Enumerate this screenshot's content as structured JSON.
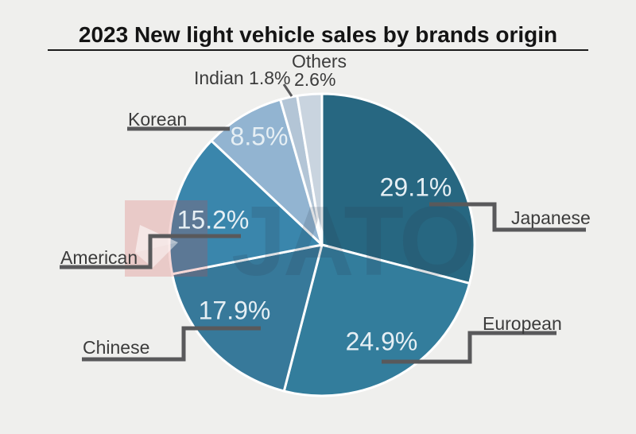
{
  "title": "2023 New light vehicle sales by brands origin",
  "watermark": {
    "brand": "JATO"
  },
  "chart_data": {
    "type": "pie",
    "title": "2023 New light vehicle sales by brands origin",
    "units": "percent share",
    "start_angle_deg": 0,
    "clockwise": true,
    "legend_position": "callout-labels",
    "series": [
      {
        "label": "Japanese",
        "value": 29.1,
        "display": "29.1%",
        "color": "#276781"
      },
      {
        "label": "European",
        "value": 24.9,
        "display": "24.9%",
        "color": "#337D9C"
      },
      {
        "label": "Chinese",
        "value": 17.9,
        "display": "17.9%",
        "color": "#37799A"
      },
      {
        "label": "American",
        "value": 15.2,
        "display": "15.2%",
        "color": "#3A86AC"
      },
      {
        "label": "Korean",
        "value": 8.5,
        "display": "8.5%",
        "color": "#92B4D1"
      },
      {
        "label": "Indian",
        "value": 1.8,
        "display": "1.8%",
        "color": "#B3C5D6"
      },
      {
        "label": "Others",
        "value": 2.6,
        "display": "2.6%",
        "color": "#C9D4DF"
      }
    ]
  },
  "callouts": {
    "japanese": "Japanese",
    "european": "European",
    "chinese": "Chinese",
    "american": "American",
    "korean": "Korean",
    "indian": "Indian 1.8%",
    "others_line1": "Others",
    "others_line2": "2.6%"
  }
}
